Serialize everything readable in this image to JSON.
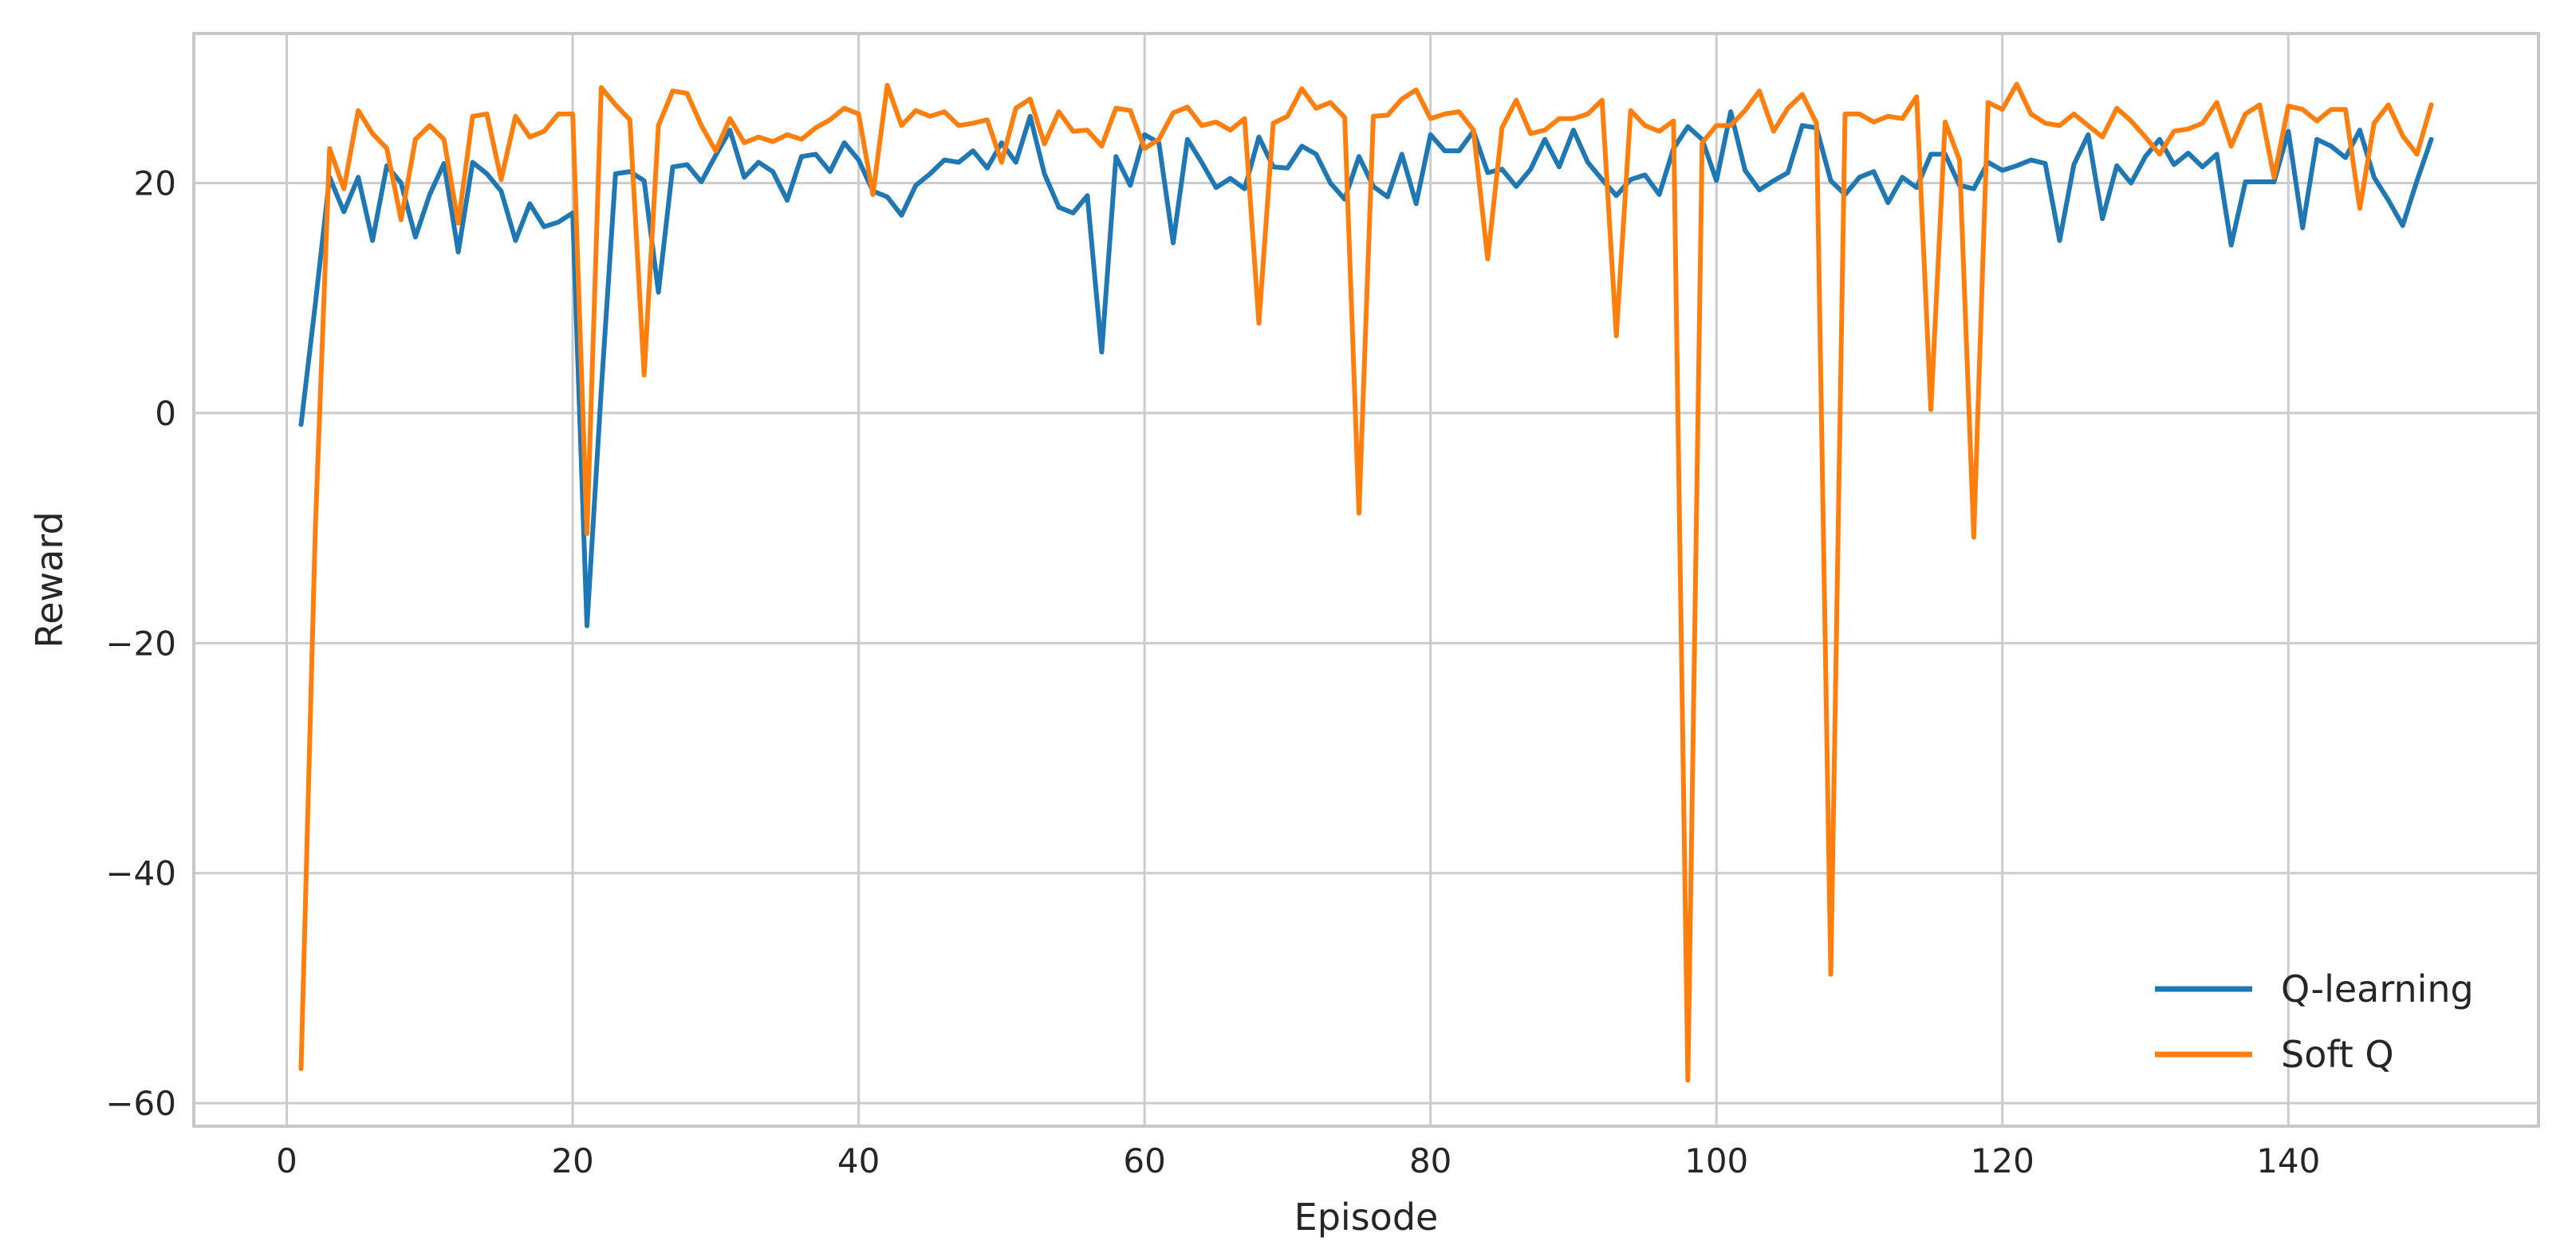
{
  "chart_data": {
    "type": "line",
    "title": "",
    "xlabel": "Episode",
    "ylabel": "Reward",
    "xlim": [
      -6.5,
      157.5
    ],
    "ylim": [
      -62,
      33
    ],
    "xticks": [
      0,
      20,
      40,
      60,
      80,
      100,
      120,
      140
    ],
    "yticks": [
      -60,
      -40,
      -20,
      0,
      20
    ],
    "xtick_labels": [
      "0",
      "20",
      "40",
      "60",
      "80",
      "100",
      "120",
      "140"
    ],
    "ytick_labels": [
      "−60",
      "−40",
      "−20",
      "0",
      "20"
    ],
    "grid": true,
    "legend": "lower-right",
    "series": [
      {
        "name": "Q-learning",
        "color": "#1f77b4",
        "x": [
          1,
          2,
          3,
          4,
          5,
          6,
          7,
          8,
          9,
          10,
          11,
          12,
          13,
          14,
          15,
          16,
          17,
          18,
          19,
          20,
          21,
          22,
          23,
          24,
          25,
          26,
          27,
          28,
          29,
          30,
          31,
          32,
          33,
          34,
          35,
          36,
          37,
          38,
          39,
          40,
          41,
          42,
          43,
          44,
          45,
          46,
          47,
          48,
          49,
          50,
          51,
          52,
          53,
          54,
          55,
          56,
          57,
          58,
          59,
          60,
          61,
          62,
          63,
          64,
          65,
          66,
          67,
          68,
          69,
          70,
          71,
          72,
          73,
          74,
          75,
          76,
          77,
          78,
          79,
          80,
          81,
          82,
          83,
          84,
          85,
          86,
          87,
          88,
          89,
          90,
          91,
          92,
          93,
          94,
          95,
          96,
          97,
          98,
          99,
          100,
          101,
          102,
          103,
          104,
          105,
          106,
          107,
          108,
          109,
          110,
          111,
          112,
          113,
          114,
          115,
          116,
          117,
          118,
          119,
          120,
          121,
          122,
          123,
          124,
          125,
          126,
          127,
          128,
          129,
          130,
          131,
          132,
          133,
          134,
          135,
          136,
          137,
          138,
          139,
          140,
          141,
          142,
          143,
          144,
          145,
          146,
          147,
          148,
          149,
          150
        ],
        "values": [
          -1,
          9.5,
          20.5,
          17.5,
          20.5,
          15,
          21.5,
          20,
          15.3,
          19,
          21.7,
          14,
          21.8,
          20.8,
          19.3,
          15,
          18.2,
          16.2,
          16.6,
          17.4,
          -18.5,
          2,
          20.8,
          21,
          20.2,
          10.5,
          21.4,
          21.6,
          20.1,
          22.4,
          24.6,
          20.5,
          21.8,
          21,
          18.5,
          22.3,
          22.5,
          21,
          23.5,
          22,
          19.3,
          18.8,
          17.2,
          19.8,
          20.8,
          22,
          21.8,
          22.8,
          21.3,
          23.5,
          21.8,
          25.8,
          20.8,
          17.9,
          17.4,
          18.9,
          5.3,
          22.3,
          19.8,
          24.2,
          23.5,
          14.8,
          23.8,
          21.8,
          19.6,
          20.4,
          19.5,
          24,
          21.4,
          21.3,
          23.2,
          22.5,
          20,
          18.6,
          22.3,
          19.7,
          18.8,
          22.5,
          18.2,
          24.2,
          22.8,
          22.8,
          24.5,
          20.9,
          21.2,
          19.7,
          21.2,
          23.8,
          21.4,
          24.6,
          21.8,
          20.3,
          18.9,
          20.3,
          20.7,
          19,
          23,
          24.9,
          23.8,
          20.2,
          26.2,
          21.1,
          19.4,
          20.2,
          20.9,
          25,
          24.8,
          20.2,
          19,
          20.5,
          21,
          18.3,
          20.5,
          19.6,
          22.5,
          22.5,
          19.8,
          19.5,
          21.8,
          21.1,
          21.5,
          22,
          21.7,
          15,
          21.6,
          24.2,
          16.9,
          21.5,
          20,
          22.3,
          23.8,
          21.6,
          22.6,
          21.4,
          22.5,
          14.6,
          20.1,
          20.1,
          20.1,
          24.5,
          16.1,
          23.8,
          23.2,
          22.2,
          24.6,
          20.5,
          18.5,
          16.3,
          20.2,
          23.8
        ]
      },
      {
        "name": "Soft Q",
        "color": "#ff7f0e",
        "x": [
          1,
          2,
          3,
          4,
          5,
          6,
          7,
          8,
          9,
          10,
          11,
          12,
          13,
          14,
          15,
          16,
          17,
          18,
          19,
          20,
          21,
          22,
          23,
          24,
          25,
          26,
          27,
          28,
          29,
          30,
          31,
          32,
          33,
          34,
          35,
          36,
          37,
          38,
          39,
          40,
          41,
          42,
          43,
          44,
          45,
          46,
          47,
          48,
          49,
          50,
          51,
          52,
          53,
          54,
          55,
          56,
          57,
          58,
          59,
          60,
          61,
          62,
          63,
          64,
          65,
          66,
          67,
          68,
          69,
          70,
          71,
          72,
          73,
          74,
          75,
          76,
          77,
          78,
          79,
          80,
          81,
          82,
          83,
          84,
          85,
          86,
          87,
          88,
          89,
          90,
          91,
          92,
          93,
          94,
          95,
          96,
          97,
          98,
          99,
          100,
          101,
          102,
          103,
          104,
          105,
          106,
          107,
          108,
          109,
          110,
          111,
          112,
          113,
          114,
          115,
          116,
          117,
          118,
          119,
          120,
          121,
          122,
          123,
          124,
          125,
          126,
          127,
          128,
          129,
          130,
          131,
          132,
          133,
          134,
          135,
          136,
          137,
          138,
          139,
          140,
          141,
          142,
          143,
          144,
          145,
          146,
          147,
          148,
          149,
          150
        ],
        "values": [
          -57,
          -10,
          23,
          19.5,
          26.3,
          24.3,
          23,
          16.8,
          23.8,
          25,
          23.8,
          16.5,
          25.8,
          26,
          20.3,
          25.8,
          24,
          24.5,
          26,
          26,
          -10.5,
          28.3,
          26.8,
          25.5,
          3.3,
          25,
          28,
          27.8,
          25,
          22.8,
          25.6,
          23.5,
          24,
          23.6,
          24.2,
          23.8,
          24.8,
          25.5,
          26.5,
          26,
          19,
          28.5,
          25,
          26.3,
          25.8,
          26.2,
          25,
          25.2,
          25.5,
          21.8,
          26.5,
          27.3,
          23.4,
          26.2,
          24.5,
          24.6,
          23.2,
          26.5,
          26.3,
          23,
          23.8,
          26.1,
          26.6,
          25,
          25.3,
          24.6,
          25.6,
          7.8,
          25.2,
          25.8,
          28.2,
          26.5,
          27,
          25.7,
          -8.7,
          25.8,
          25.9,
          27.3,
          28.1,
          25.6,
          26,
          26.2,
          24.6,
          13.4,
          24.8,
          27.2,
          24.3,
          24.6,
          25.6,
          25.6,
          26,
          27.2,
          6.7,
          26.3,
          25,
          24.5,
          25.4,
          -58,
          23.5,
          25,
          25,
          26.3,
          28,
          24.5,
          26.5,
          27.7,
          25.2,
          -48.8,
          26,
          26,
          25.3,
          25.8,
          25.6,
          27.5,
          0.3,
          25.3,
          22,
          -10.8,
          27,
          26.4,
          28.6,
          26,
          25.2,
          25,
          26,
          25,
          24,
          26.5,
          25.4,
          24,
          22.5,
          24.5,
          24.7,
          25.2,
          27,
          23.2,
          26,
          26.8,
          20.5,
          26.7,
          26.4,
          25.4,
          26.4,
          26.4,
          17.8,
          25.2,
          26.8,
          24.1,
          22.5,
          26.8
        ]
      }
    ]
  }
}
